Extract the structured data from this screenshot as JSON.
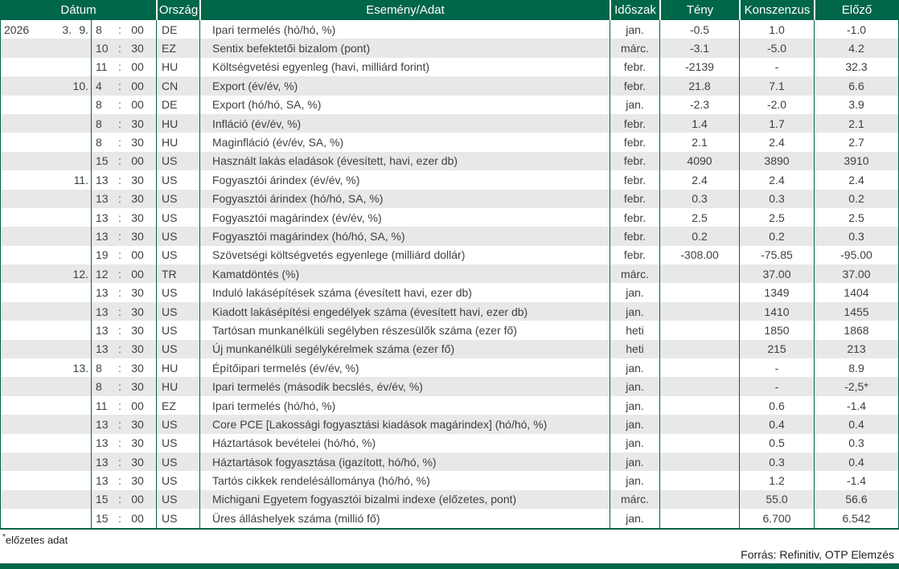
{
  "colors": {
    "green": "#006649",
    "stripe": "#e8e8e8",
    "body_text": "#3f3f3f"
  },
  "header": {
    "date": "Dátum",
    "country": "Ország",
    "event": "Esemény/Adat",
    "period": "Időszak",
    "actual": "Tény",
    "consensus": "Konszenzus",
    "previous": "Előző"
  },
  "table": {
    "time_separator": ":"
  },
  "rows": [
    {
      "year": "2026",
      "month": "3.",
      "day": "9.",
      "hour": "8",
      "minute": "00",
      "country": "DE",
      "event": "Ipari termelés (hó/hó, %)",
      "period": "jan.",
      "actual": "-0.5",
      "consensus": "1.0",
      "previous": "-1.0"
    },
    {
      "year": "",
      "month": "",
      "day": "",
      "hour": "10",
      "minute": "30",
      "country": "EZ",
      "event": "Sentix befektetői bizalom (pont)",
      "period": "márc.",
      "actual": "-3.1",
      "consensus": "-5.0",
      "previous": "4.2"
    },
    {
      "year": "",
      "month": "",
      "day": "",
      "hour": "11",
      "minute": "00",
      "country": "HU",
      "event": "Költségvetési egyenleg (havi, milliárd forint)",
      "period": "febr.",
      "actual": "-2139",
      "consensus": "-",
      "previous": "32.3"
    },
    {
      "year": "",
      "month": "",
      "day": "10.",
      "hour": "4",
      "minute": "00",
      "country": "CN",
      "event": "Export (év/év, %)",
      "period": "febr.",
      "actual": "21.8",
      "consensus": "7.1",
      "previous": "6.6"
    },
    {
      "year": "",
      "month": "",
      "day": "",
      "hour": "8",
      "minute": "00",
      "country": "DE",
      "event": "Export (hó/hó, SA, %)",
      "period": "jan.",
      "actual": "-2.3",
      "consensus": "-2.0",
      "previous": "3.9"
    },
    {
      "year": "",
      "month": "",
      "day": "",
      "hour": "8",
      "minute": "30",
      "country": "HU",
      "event": "Infláció (év/év, %)",
      "period": "febr.",
      "actual": "1.4",
      "consensus": "1.7",
      "previous": "2.1"
    },
    {
      "year": "",
      "month": "",
      "day": "",
      "hour": "8",
      "minute": "30",
      "country": "HU",
      "event": "Maginfláció (év/év, SA, %)",
      "period": "febr.",
      "actual": "2.1",
      "consensus": "2.4",
      "previous": "2.7"
    },
    {
      "year": "",
      "month": "",
      "day": "",
      "hour": "15",
      "minute": "00",
      "country": "US",
      "event": "Használt lakás eladások (évesített, havi, ezer db)",
      "period": "febr.",
      "actual": "4090",
      "consensus": "3890",
      "previous": "3910"
    },
    {
      "year": "",
      "month": "",
      "day": "11.",
      "hour": "13",
      "minute": "30",
      "country": "US",
      "event": "Fogyasztói árindex (év/év, %)",
      "period": "febr.",
      "actual": "2.4",
      "consensus": "2.4",
      "previous": "2.4"
    },
    {
      "year": "",
      "month": "",
      "day": "",
      "hour": "13",
      "minute": "30",
      "country": "US",
      "event": "Fogyasztói árindex (hó/hó, SA, %)",
      "period": "febr.",
      "actual": "0.3",
      "consensus": "0.3",
      "previous": "0.2"
    },
    {
      "year": "",
      "month": "",
      "day": "",
      "hour": "13",
      "minute": "30",
      "country": "US",
      "event": "Fogyasztói magárindex (év/év, %)",
      "period": "febr.",
      "actual": "2.5",
      "consensus": "2.5",
      "previous": "2.5"
    },
    {
      "year": "",
      "month": "",
      "day": "",
      "hour": "13",
      "minute": "30",
      "country": "US",
      "event": "Fogyasztói magárindex (hó/hó, SA, %)",
      "period": "febr.",
      "actual": "0.2",
      "consensus": "0.2",
      "previous": "0.3"
    },
    {
      "year": "",
      "month": "",
      "day": "",
      "hour": "19",
      "minute": "00",
      "country": "US",
      "event": "Szövetségi költségvetés egyenlege (milliárd dollár)",
      "period": "febr.",
      "actual": "-308.00",
      "consensus": "-75.85",
      "previous": "-95.00"
    },
    {
      "year": "",
      "month": "",
      "day": "12.",
      "hour": "12",
      "minute": "00",
      "country": "TR",
      "event": "Kamatdöntés (%)",
      "period": "márc.",
      "actual": "",
      "consensus": "37.00",
      "previous": "37.00"
    },
    {
      "year": "",
      "month": "",
      "day": "",
      "hour": "13",
      "minute": "30",
      "country": "US",
      "event": "Induló lakásépítések száma (évesített havi, ezer db)",
      "period": "jan.",
      "actual": "",
      "consensus": "1349",
      "previous": "1404"
    },
    {
      "year": "",
      "month": "",
      "day": "",
      "hour": "13",
      "minute": "30",
      "country": "US",
      "event": "Kiadott lakásépítési engedélyek száma (évesített havi, ezer db)",
      "period": "jan.",
      "actual": "",
      "consensus": "1410",
      "previous": "1455"
    },
    {
      "year": "",
      "month": "",
      "day": "",
      "hour": "13",
      "minute": "30",
      "country": "US",
      "event": "Tartósan munkanélküli segélyben részesülők száma (ezer fő)",
      "period": "heti",
      "actual": "",
      "consensus": "1850",
      "previous": "1868"
    },
    {
      "year": "",
      "month": "",
      "day": "",
      "hour": "13",
      "minute": "30",
      "country": "US",
      "event": "Új munkanélküli segélykérelmek száma (ezer fő)",
      "period": "heti",
      "actual": "",
      "consensus": "215",
      "previous": "213"
    },
    {
      "year": "",
      "month": "",
      "day": "13.",
      "hour": "8",
      "minute": "30",
      "country": "HU",
      "event": "Építőipari termelés (év/év, %)",
      "period": "jan.",
      "actual": "",
      "consensus": "-",
      "previous": "8.9"
    },
    {
      "year": "",
      "month": "",
      "day": "",
      "hour": "8",
      "minute": "30",
      "country": "HU",
      "event": "Ipari termelés (második becslés, év/év, %)",
      "period": "jan.",
      "actual": "",
      "consensus": "-",
      "previous": "-2,5*"
    },
    {
      "year": "",
      "month": "",
      "day": "",
      "hour": "11",
      "minute": "00",
      "country": "EZ",
      "event": "Ipari termelés (hó/hó, %)",
      "period": "jan.",
      "actual": "",
      "consensus": "0.6",
      "previous": "-1.4"
    },
    {
      "year": "",
      "month": "",
      "day": "",
      "hour": "13",
      "minute": "30",
      "country": "US",
      "event": "Core PCE [Lakossági fogyasztási kiadások magárindex] (hó/hó, %)",
      "period": "jan.",
      "actual": "",
      "consensus": "0.4",
      "previous": "0.4"
    },
    {
      "year": "",
      "month": "",
      "day": "",
      "hour": "13",
      "minute": "30",
      "country": "US",
      "event": "Háztartások bevételei (hó/hó, %)",
      "period": "jan.",
      "actual": "",
      "consensus": "0.5",
      "previous": "0.3"
    },
    {
      "year": "",
      "month": "",
      "day": "",
      "hour": "13",
      "minute": "30",
      "country": "US",
      "event": "Háztartások fogyasztása (igazított, hó/hó, %)",
      "period": "jan.",
      "actual": "",
      "consensus": "0.3",
      "previous": "0.4"
    },
    {
      "year": "",
      "month": "",
      "day": "",
      "hour": "13",
      "minute": "30",
      "country": "US",
      "event": "Tartós cikkek rendelésállománya (hó/hó, %)",
      "period": "jan.",
      "actual": "",
      "consensus": "1.2",
      "previous": "-1.4"
    },
    {
      "year": "",
      "month": "",
      "day": "",
      "hour": "15",
      "minute": "00",
      "country": "US",
      "event": "Michigani Egyetem fogyasztói bizalmi indexe (előzetes, pont)",
      "period": "márc.",
      "actual": "",
      "consensus": "55.0",
      "previous": "56.6"
    },
    {
      "year": "",
      "month": "",
      "day": "",
      "hour": "15",
      "minute": "00",
      "country": "US",
      "event": "Üres álláshelyek száma (millió fő)",
      "period": "jan.",
      "actual": "",
      "consensus": "6.700",
      "previous": "6.542"
    }
  ],
  "footnote": {
    "marker": "*",
    "text": "előzetes adat"
  },
  "source": "Forrás: Refinitiv, OTP Elemzés"
}
